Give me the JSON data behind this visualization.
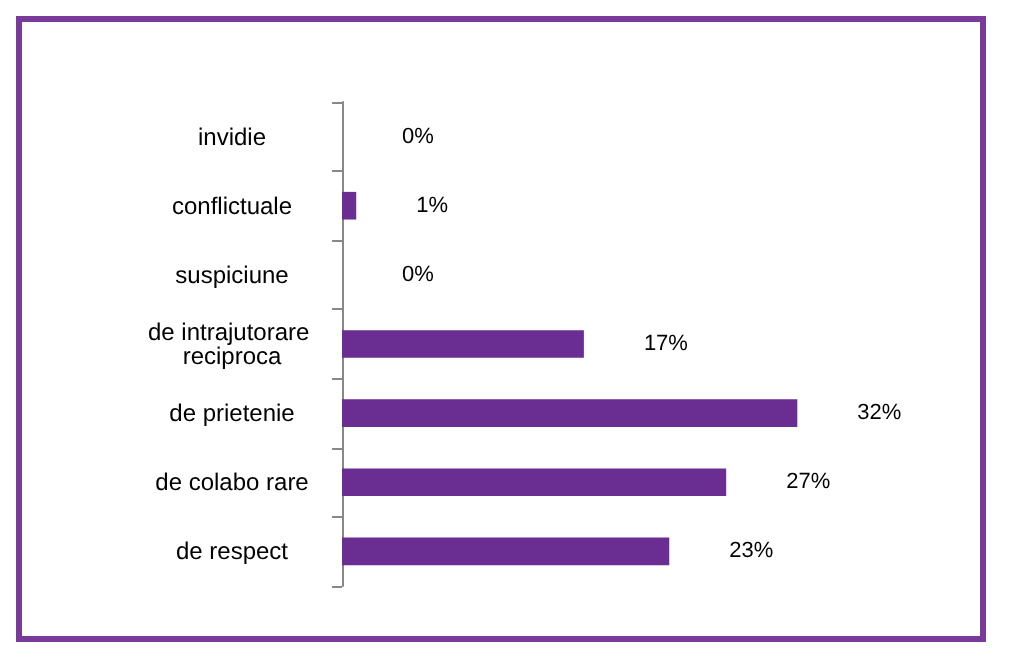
{
  "chart_data": {
    "type": "bar",
    "orientation": "horizontal",
    "categories": [
      "invidie",
      "conflictuale",
      "suspiciune",
      "de intrajutorare reciproca",
      "de prietenie",
      "de colabo rare",
      "de respect"
    ],
    "values": [
      0,
      1,
      0,
      17,
      32,
      27,
      23
    ],
    "value_labels": [
      "0%",
      "1%",
      "0%",
      "17%",
      "32%",
      "27%",
      "23%"
    ],
    "color": "#6a2d91"
  }
}
